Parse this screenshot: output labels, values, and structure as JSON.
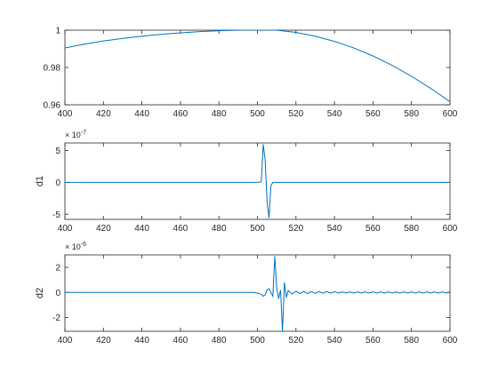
{
  "chart_data": [
    {
      "type": "line",
      "xlabel": "",
      "ylabel": "",
      "xlim": [
        400,
        600
      ],
      "ylim": [
        0.96,
        1
      ],
      "x_ticks": [
        "400",
        "420",
        "440",
        "460",
        "480",
        "500",
        "520",
        "540",
        "560",
        "580",
        "600"
      ],
      "y_ticks": [
        "0.96",
        "0.98",
        "1"
      ],
      "y_tick_values": [
        0.96,
        0.98,
        1
      ],
      "exponent": "",
      "grid": false,
      "line_color": "#0072bd",
      "series": [
        {
          "x": [
            400,
            410,
            420,
            430,
            440,
            450,
            460,
            470,
            480,
            490,
            500,
            510,
            520,
            530,
            540,
            550,
            560,
            570,
            580,
            590,
            600
          ],
          "y": [
            0.9905,
            0.9925,
            0.9942,
            0.9956,
            0.9968,
            0.9978,
            0.9986,
            0.9992,
            0.9997,
            1.0,
            1.0,
            1.0,
            0.9988,
            0.9968,
            0.994,
            0.9905,
            0.9862,
            0.9811,
            0.9753,
            0.9688,
            0.9617
          ]
        }
      ]
    },
    {
      "type": "line",
      "xlabel": "",
      "ylabel": "d1",
      "xlim": [
        400,
        600
      ],
      "ylim": [
        -5.8,
        6.2
      ],
      "x_ticks": [
        "400",
        "420",
        "440",
        "460",
        "480",
        "500",
        "520",
        "540",
        "560",
        "580",
        "600"
      ],
      "y_ticks": [
        "-5",
        "0",
        "5"
      ],
      "y_tick_values": [
        -5,
        0,
        5
      ],
      "exponent_base": "× 10",
      "exponent_power": "-7",
      "grid": false,
      "line_color": "#0072bd",
      "series": [
        {
          "x": [
            400,
            500,
            502,
            503,
            504,
            505,
            506,
            507,
            508,
            600
          ],
          "y": [
            0,
            0,
            0.1,
            6.0,
            3.5,
            -3.0,
            -5.6,
            -0.5,
            0,
            0
          ]
        }
      ]
    },
    {
      "type": "line",
      "xlabel": "",
      "ylabel": "d2",
      "xlim": [
        400,
        600
      ],
      "ylim": [
        -3.1,
        3.0
      ],
      "x_ticks": [
        "400",
        "420",
        "440",
        "460",
        "480",
        "500",
        "520",
        "540",
        "560",
        "580",
        "600"
      ],
      "y_ticks": [
        "-2",
        "0",
        "2"
      ],
      "y_tick_values": [
        -2,
        0,
        2
      ],
      "exponent_base": "× 10",
      "exponent_power": "-6",
      "grid": false,
      "line_color": "#0072bd",
      "series": [
        {
          "x": [
            400,
            498,
            500,
            502,
            503,
            504,
            505,
            506,
            507,
            508,
            509,
            510,
            511,
            512,
            513,
            514,
            515,
            516,
            518,
            520,
            522,
            524,
            526,
            528,
            530,
            532,
            534,
            536,
            538,
            540,
            542,
            544,
            546,
            548,
            550,
            552,
            554,
            556,
            558,
            560,
            562,
            564,
            566,
            568,
            570,
            572,
            574,
            576,
            578,
            580,
            582,
            584,
            586,
            588,
            590,
            592,
            594,
            596,
            598,
            600
          ],
          "y": [
            0,
            0,
            -0.05,
            -0.15,
            -0.3,
            -0.2,
            0.2,
            0.3,
            0,
            -0.3,
            2.9,
            0.4,
            -0.5,
            0.2,
            -3.1,
            0.8,
            -0.4,
            0.15,
            -0.12,
            0.1,
            -0.09,
            0.08,
            -0.08,
            0.07,
            -0.07,
            0.07,
            -0.06,
            0.06,
            -0.06,
            0.06,
            -0.05,
            0.05,
            -0.05,
            0.05,
            -0.05,
            0.05,
            -0.05,
            0.05,
            -0.05,
            0.05,
            -0.05,
            0.05,
            -0.05,
            0.05,
            -0.05,
            0.05,
            -0.05,
            0.05,
            -0.05,
            0.05,
            -0.05,
            0.05,
            -0.05,
            0.05,
            -0.05,
            0.05,
            -0.05,
            0.05,
            -0.05,
            0.05
          ]
        }
      ]
    }
  ]
}
